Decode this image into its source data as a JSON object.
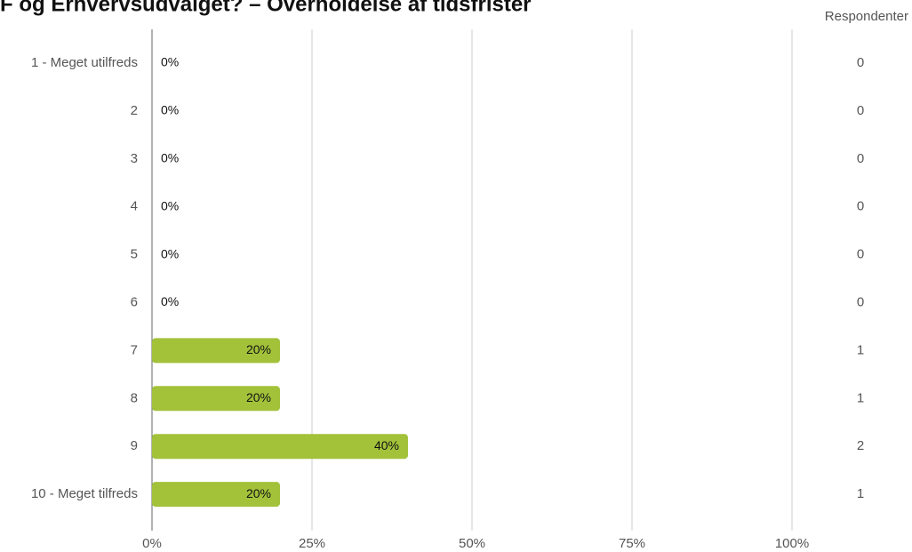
{
  "chart_data": {
    "type": "bar",
    "orientation": "horizontal",
    "title": "F og Erhvervsudvalget? – Overholdelse af tidsfrister",
    "categories": [
      "1 - Meget utilfreds",
      "2",
      "3",
      "4",
      "5",
      "6",
      "7",
      "8",
      "9",
      "10 - Meget tilfreds"
    ],
    "values": [
      0,
      0,
      0,
      0,
      0,
      0,
      20,
      20,
      40,
      20
    ],
    "value_labels": [
      "0%",
      "0%",
      "0%",
      "0%",
      "0%",
      "0%",
      "20%",
      "20%",
      "40%",
      "20%"
    ],
    "count_header": "Respondenter",
    "counts": [
      0,
      0,
      0,
      0,
      0,
      0,
      1,
      1,
      2,
      1
    ],
    "color": "#a3c23a",
    "xlim": [
      0,
      100
    ],
    "xticks": [
      {
        "value": 0,
        "label": "0%"
      },
      {
        "value": 25,
        "label": "25%"
      },
      {
        "value": 50,
        "label": "50%"
      },
      {
        "value": 75,
        "label": "75%"
      },
      {
        "value": 100,
        "label": "100%"
      }
    ],
    "grid": true
  }
}
